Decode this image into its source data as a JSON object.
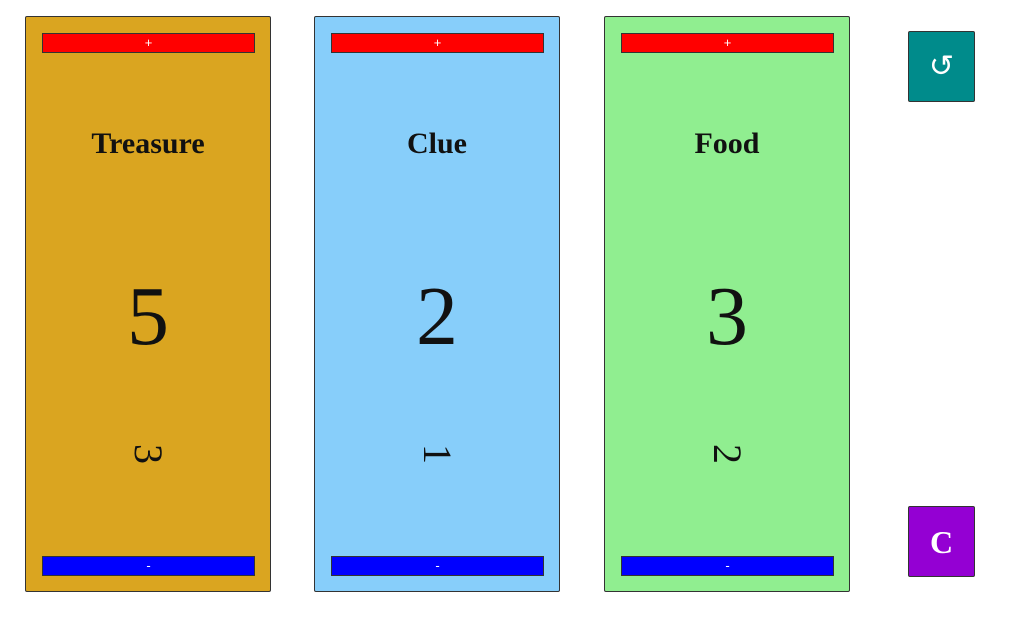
{
  "cards": [
    {
      "title": "Treasure",
      "count": "5",
      "sub": "3",
      "plus_label": "+",
      "minus_label": "-",
      "bg_color": "#DAA520",
      "plus_color": "#FF0000",
      "minus_color": "#0000FF"
    },
    {
      "title": "Clue",
      "count": "2",
      "sub": "1",
      "plus_label": "+",
      "minus_label": "-",
      "bg_color": "#87CEFA",
      "plus_color": "#FF0000",
      "minus_color": "#0000FF"
    },
    {
      "title": "Food",
      "count": "3",
      "sub": "2",
      "plus_label": "+",
      "minus_label": "-",
      "bg_color": "#90EE90",
      "plus_color": "#FF0000",
      "minus_color": "#0000FF"
    }
  ],
  "controls": {
    "reset": {
      "icon": "reset-icon",
      "glyph": "↺",
      "color": "#008B8B"
    },
    "clear": {
      "label": "C",
      "color": "#9400D3"
    }
  }
}
